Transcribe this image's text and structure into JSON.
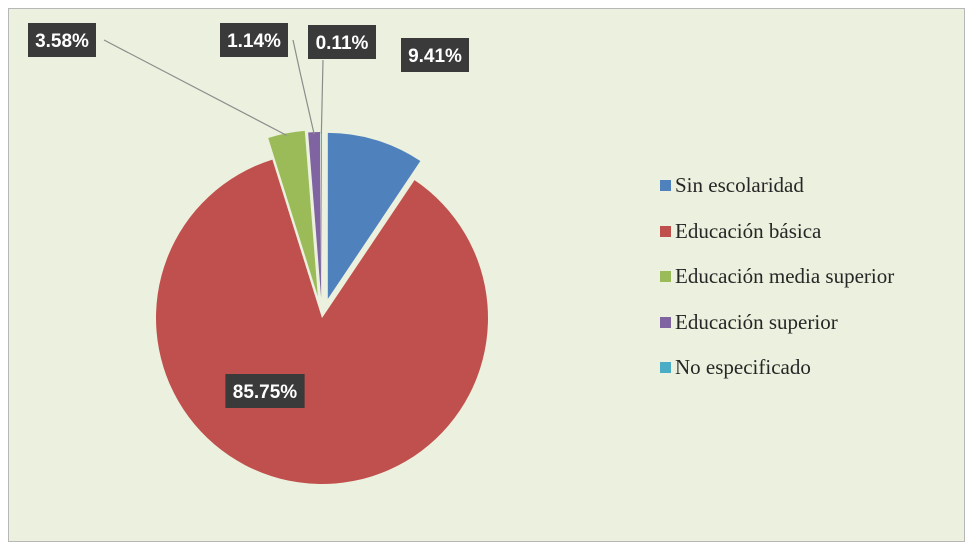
{
  "chart_data": {
    "type": "pie",
    "exploded": true,
    "categories": [
      "Sin escolaridad",
      "Educación básica",
      "Educación media superior",
      "Educación superior",
      "No especificado"
    ],
    "values": [
      9.41,
      85.75,
      3.58,
      1.14,
      0.11
    ],
    "labels": [
      "9.41%",
      "85.75%",
      "3.58%",
      "1.14%",
      "0.11%"
    ],
    "colors": [
      "#4f81bd",
      "#c0504d",
      "#9bbb59",
      "#8064a2",
      "#4bacc6"
    ],
    "legend_position": "right",
    "background": "#ebf1de"
  }
}
